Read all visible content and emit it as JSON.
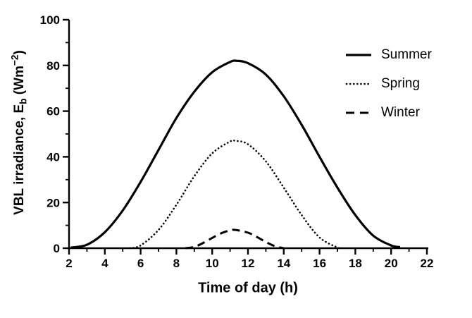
{
  "chart_data": {
    "type": "line",
    "title": "",
    "xlabel": "Time of day (h)",
    "ylabel": "VBL irradiance, Eb (Wm-2)",
    "ylabel_parts": {
      "prefix": "VBL irradiance, E",
      "sub": "b",
      "mid": " (Wm",
      "sup": "−2",
      "suffix": ")"
    },
    "xlim": [
      2,
      22
    ],
    "ylim": [
      0,
      100
    ],
    "xticks": [
      2,
      4,
      6,
      8,
      10,
      12,
      14,
      16,
      18,
      20,
      22
    ],
    "yticks": [
      0,
      20,
      40,
      60,
      80,
      100
    ],
    "x_minor_ticks": [
      3,
      5,
      7,
      9,
      11,
      13,
      15,
      17,
      19,
      21
    ],
    "y_minor_ticks": [
      10,
      30,
      50,
      70,
      90
    ],
    "grid": false,
    "legend_position": "top-right",
    "line_color": "#000000",
    "series": [
      {
        "name": "Summer",
        "style": "solid",
        "points": [
          [
            2.1,
            0.3
          ],
          [
            3,
            1.5
          ],
          [
            4,
            7
          ],
          [
            5,
            16.5
          ],
          [
            6,
            29
          ],
          [
            7,
            43
          ],
          [
            8,
            57
          ],
          [
            9,
            68.5
          ],
          [
            10,
            77
          ],
          [
            11,
            81.5
          ],
          [
            11.4,
            82
          ],
          [
            12,
            81
          ],
          [
            13,
            76
          ],
          [
            14,
            66.5
          ],
          [
            15,
            54
          ],
          [
            16,
            40
          ],
          [
            17,
            26.5
          ],
          [
            18,
            14.5
          ],
          [
            19,
            5.5
          ],
          [
            20,
            1.2
          ],
          [
            20.5,
            0.5
          ]
        ]
      },
      {
        "name": "Spring",
        "style": "dotted",
        "points": [
          [
            5.4,
            0
          ],
          [
            6,
            1.2
          ],
          [
            7,
            8
          ],
          [
            8,
            19
          ],
          [
            9,
            31.5
          ],
          [
            10,
            41.5
          ],
          [
            11,
            46.7
          ],
          [
            11.3,
            47
          ],
          [
            12,
            45.5
          ],
          [
            13,
            38
          ],
          [
            14,
            26.5
          ],
          [
            15,
            14.5
          ],
          [
            16,
            4.7
          ],
          [
            17,
            0.3
          ],
          [
            17.2,
            0
          ]
        ]
      },
      {
        "name": "Winter",
        "style": "dashed",
        "points": [
          [
            8.5,
            0
          ],
          [
            9,
            0.6
          ],
          [
            9.5,
            2.3
          ],
          [
            10,
            4.5
          ],
          [
            10.5,
            6.5
          ],
          [
            11,
            7.8
          ],
          [
            11.3,
            8
          ],
          [
            12,
            6.8
          ],
          [
            12.5,
            4.9
          ],
          [
            13,
            2.7
          ],
          [
            13.5,
            0.9
          ],
          [
            14,
            0
          ]
        ]
      }
    ]
  }
}
